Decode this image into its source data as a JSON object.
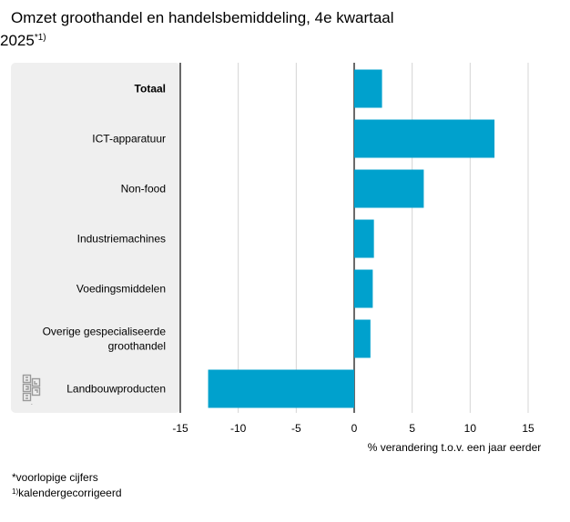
{
  "title": {
    "line1": "Omzet groothandel en handelsbemiddeling, 4e kwartaal",
    "line2": "2025",
    "marker": "*1)"
  },
  "chart_data": {
    "type": "bar",
    "orientation": "horizontal",
    "title": "Omzet groothandel en handelsbemiddeling, 4e kwartaal 2025*1)",
    "xlabel": "% verandering t.o.v. een jaar eerder",
    "ylabel": "",
    "xlim": [
      -15,
      15
    ],
    "xticks": [
      "-15",
      "-10",
      "-5",
      "0",
      "5",
      "10",
      "15"
    ],
    "grid": true,
    "categories": [
      "Totaal",
      "ICT-apparatuur",
      "Non-food",
      "Industriemachines",
      "Voedingsmiddelen",
      "Overige gespecialiseerde groothandel",
      "Landbouwproducten"
    ],
    "category_lines": [
      [
        "Totaal"
      ],
      [
        "ICT-apparatuur"
      ],
      [
        "Non-food"
      ],
      [
        "Industriemachines"
      ],
      [
        "Voedingsmiddelen"
      ],
      [
        "Overige gespecialiseerde",
        "groothandel"
      ],
      [
        "Landbouwproducten"
      ]
    ],
    "bold_categories": [
      "Totaal"
    ],
    "values": [
      2.4,
      12.1,
      6.0,
      1.7,
      1.6,
      1.4,
      -12.6
    ],
    "bar_color": "#00a1cd",
    "panel_color": "#efefef"
  },
  "footnotes": {
    "provisional": "*voorlopige cijfers",
    "marker": "1)",
    "adjusted": "kalendergecorrigeerd"
  },
  "logo": {
    "text": "cbs",
    "icon": "cbs-logo-icon"
  }
}
